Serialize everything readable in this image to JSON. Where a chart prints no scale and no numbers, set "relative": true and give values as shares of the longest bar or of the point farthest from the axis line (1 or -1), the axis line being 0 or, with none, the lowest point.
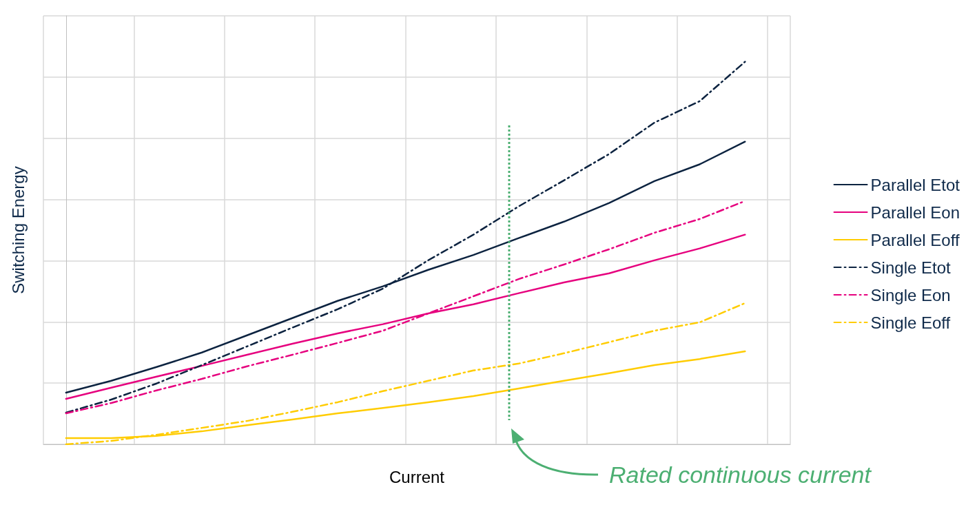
{
  "chart_data": {
    "type": "line",
    "relative": true,
    "xlabel": "Current",
    "ylabel": "Switching Energy",
    "grid": true,
    "legend": "right",
    "tick_labels": false,
    "marker": "none",
    "categories": [
      null,
      null,
      null,
      null,
      null,
      null,
      null,
      null,
      null,
      null,
      null,
      null,
      null,
      null,
      null,
      null
    ],
    "series": [
      {
        "name": "Parallel Etot",
        "color": "#0c2340",
        "line_style": "solid",
        "values": [
          0.135,
          0.166,
          0.202,
          0.24,
          0.285,
          0.33,
          0.375,
          0.413,
          0.456,
          0.495,
          0.539,
          0.582,
          0.631,
          0.688,
          0.732,
          0.791
        ]
      },
      {
        "name": "Parallel Eon",
        "color": "#e6007e",
        "line_style": "solid",
        "values": [
          0.119,
          0.148,
          0.177,
          0.205,
          0.234,
          0.263,
          0.29,
          0.314,
          0.342,
          0.366,
          0.395,
          0.423,
          0.447,
          0.481,
          0.512,
          0.548
        ]
      },
      {
        "name": "Parallel Eoff",
        "color": "#ffcc00",
        "line_style": "solid",
        "values": [
          0.016,
          0.016,
          0.022,
          0.034,
          0.05,
          0.065,
          0.081,
          0.095,
          0.11,
          0.126,
          0.146,
          0.166,
          0.186,
          0.207,
          0.223,
          0.243
        ]
      },
      {
        "name": "Single Etot",
        "color": "#0c2340",
        "line_style": "dashed",
        "values": [
          0.083,
          0.117,
          0.159,
          0.207,
          0.256,
          0.305,
          0.353,
          0.407,
          0.481,
          0.548,
          0.622,
          0.69,
          0.759,
          0.841,
          0.897,
          1
        ]
      },
      {
        "name": "Single Eon",
        "color": "#e6007e",
        "line_style": "dashed",
        "values": [
          0.081,
          0.108,
          0.141,
          0.171,
          0.204,
          0.234,
          0.265,
          0.297,
          0.342,
          0.387,
          0.432,
          0.47,
          0.51,
          0.553,
          0.589,
          0.636
        ]
      },
      {
        "name": "Single Eoff",
        "color": "#ffcc00",
        "line_style": "dashed",
        "values": [
          0,
          0.009,
          0.025,
          0.043,
          0.061,
          0.085,
          0.11,
          0.139,
          0.166,
          0.193,
          0.211,
          0.238,
          0.267,
          0.297,
          0.319,
          0.369
        ]
      }
    ],
    "annotations": [
      "Rated continuous current"
    ]
  }
}
